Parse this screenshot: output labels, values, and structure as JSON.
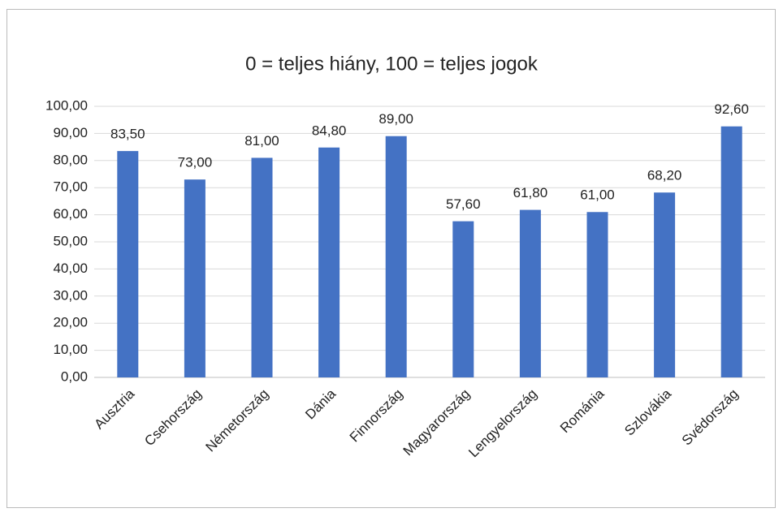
{
  "chart_data": {
    "type": "bar",
    "title": "0 = teljes hiány, 100 = teljes jogok",
    "categories": [
      "Ausztria",
      "Csehország",
      "Németország",
      "Dánia",
      "Finnország",
      "Magyarország",
      "Lengyelország",
      "Románia",
      "Szlovákia",
      "Svédország"
    ],
    "values": [
      83.5,
      73,
      81,
      84.8,
      89,
      57.6,
      61.8,
      61,
      68.2,
      92.6
    ],
    "value_labels": [
      "83,50",
      "73,00",
      "81,00",
      "84,80",
      "89,00",
      "57,60",
      "61,80",
      "61,00",
      "68,20",
      "92,60"
    ],
    "color": "#4472c4",
    "ylim": [
      0,
      100
    ],
    "yticks": [
      {
        "value": 0,
        "label": "0,00"
      },
      {
        "value": 10,
        "label": "10,00"
      },
      {
        "value": 20,
        "label": "20,00"
      },
      {
        "value": 30,
        "label": "30,00"
      },
      {
        "value": 40,
        "label": "40,00"
      },
      {
        "value": 50,
        "label": "50,00"
      },
      {
        "value": 60,
        "label": "60,00"
      },
      {
        "value": 70,
        "label": "70,00"
      },
      {
        "value": 80,
        "label": "80,00"
      },
      {
        "value": 90,
        "label": "90,00"
      },
      {
        "value": 100,
        "label": "100,00"
      }
    ],
    "grid": true
  }
}
